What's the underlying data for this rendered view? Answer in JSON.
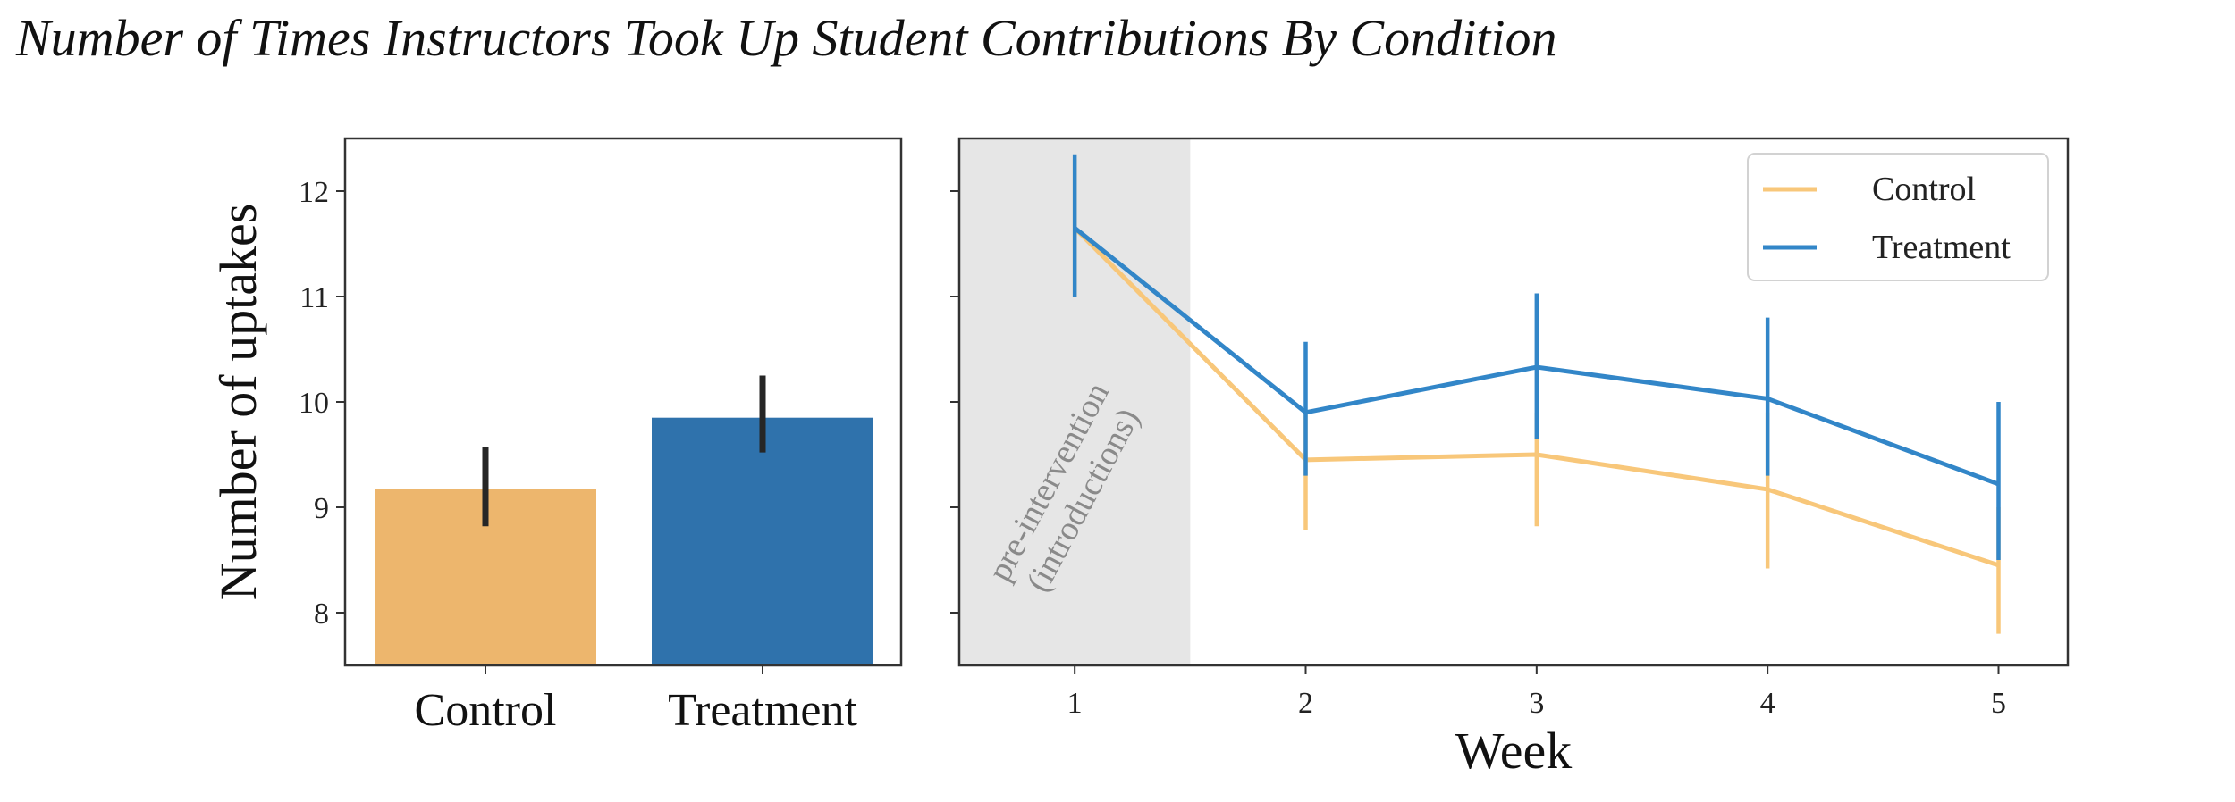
{
  "title": "Number of Times Instructors Took Up Student Contributions By Condition",
  "colors": {
    "control": "#EDB66D",
    "treatment": "#2F72AC",
    "control_line": "#F8C77A",
    "treatment_line": "#3286C8",
    "shade": "#E6E6E6"
  },
  "chart_data": [
    {
      "type": "bar",
      "categories": [
        "Control",
        "Treatment"
      ],
      "values": [
        9.17,
        9.85
      ],
      "error_bars": [
        [
          8.82,
          9.57
        ],
        [
          9.52,
          10.25
        ]
      ],
      "ylabel": "Number of uptakes",
      "xlabel": "",
      "ylim": [
        7.5,
        12.5
      ],
      "yticks": [
        "8",
        "9",
        "10",
        "11",
        "12"
      ]
    },
    {
      "type": "line",
      "x": [
        1,
        2,
        3,
        4,
        5
      ],
      "xticks": [
        "1",
        "2",
        "3",
        "4",
        "5"
      ],
      "xlabel": "Week",
      "xlim": [
        0.5,
        5.3
      ],
      "ylim": [
        7.5,
        12.5
      ],
      "legend": "top-right",
      "shaded_region": {
        "from": 0.5,
        "to": 1.5,
        "label_line1": "pre-intervention",
        "label_line2": "(introductions)"
      },
      "series": [
        {
          "name": "Control",
          "values": [
            11.65,
            9.45,
            9.5,
            9.17,
            8.45
          ],
          "error_low": [
            11.0,
            8.78,
            8.82,
            8.42,
            7.8
          ],
          "error_high": [
            12.3,
            9.9,
            9.9,
            9.9,
            9.0
          ]
        },
        {
          "name": "Treatment",
          "values": [
            11.65,
            9.9,
            10.33,
            10.03,
            9.22
          ],
          "error_low": [
            11.0,
            9.3,
            9.65,
            9.3,
            8.5
          ],
          "error_high": [
            12.35,
            10.57,
            11.03,
            10.8,
            10.0
          ]
        }
      ]
    }
  ]
}
